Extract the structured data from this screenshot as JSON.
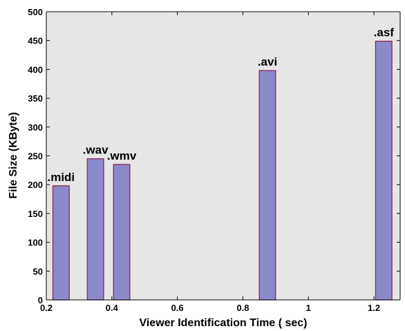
{
  "chart_data": {
    "type": "bar",
    "title": "",
    "xlabel": "Viewer Identification Time ( sec)",
    "ylabel": "File Size (KByte)",
    "xlim": [
      0.2,
      1.28
    ],
    "ylim": [
      0,
      500
    ],
    "xticks": [
      "0.2",
      "0.4",
      "0.6",
      "0.8",
      "1",
      "1.2"
    ],
    "yticks": [
      "0",
      "50",
      "100",
      "150",
      "200",
      "250",
      "300",
      "350",
      "400",
      "450",
      "500"
    ],
    "bar_width": 0.05,
    "series": [
      {
        "x": [
          0.245,
          0.35,
          0.43,
          0.875,
          1.23
        ],
        "values": [
          198,
          245,
          235,
          398,
          449
        ],
        "labels": [
          ".midi",
          ".wav",
          ".wmv",
          ".avi",
          ".asf"
        ]
      }
    ],
    "grid": false,
    "legend": "none",
    "colors": {
      "bar_fill": "#8a8acb",
      "bar_stroke": "#8b1a4a",
      "plot_bg": "#e6e6e6",
      "axis": "#000000"
    }
  }
}
